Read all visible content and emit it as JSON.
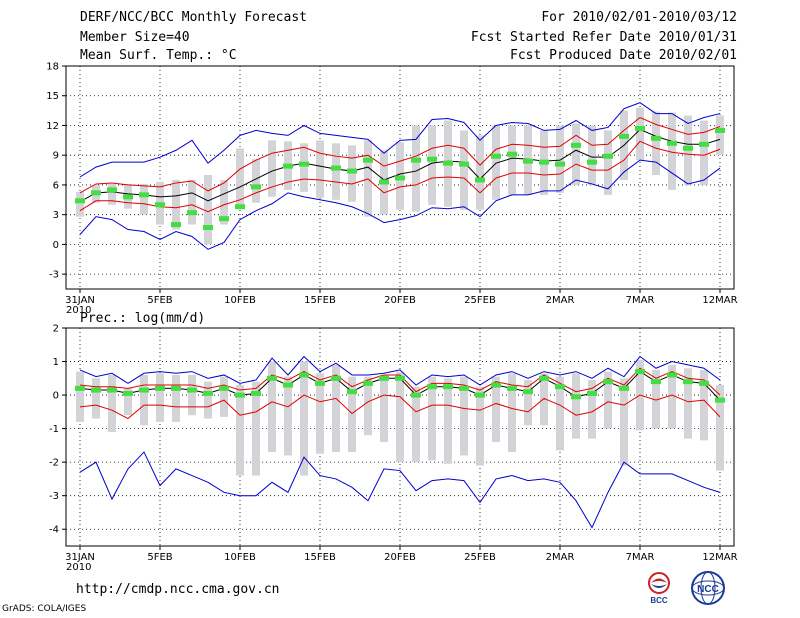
{
  "header": {
    "title": "DERF/NCC/BCC Monthly Forecast",
    "member": "Member Size=40",
    "variable": "Mean Surf. Temp.: °C",
    "period": "For 2010/02/01-2010/03/12",
    "refer": "Fcst Started Refer Date 2010/01/31",
    "produced": "Fcst Produced Date 2010/02/01"
  },
  "precip_label": "Prec.: log(mm/d)",
  "url": "http://cmdp.ncc.cma.gov.cn",
  "credit": "GrADS: COLA/IGES",
  "logos": {
    "bcc": "BCC",
    "ncc": "NCC"
  },
  "colors": {
    "ensemble_bar": "#d4d4d8",
    "mean": "#000000",
    "spread": "#e00000",
    "extreme": "#0000cc",
    "obs": "#44dd44"
  },
  "chart_data": [
    {
      "type": "line",
      "title": "Mean Surf. Temp.: °C",
      "x_tick_labels": [
        "31JAN",
        "5FEB",
        "10FEB",
        "15FEB",
        "20FEB",
        "25FEB",
        "2MAR",
        "7MAR",
        "12MAR"
      ],
      "x_tick_days": [
        0,
        5,
        10,
        15,
        20,
        25,
        30,
        35,
        40
      ],
      "year_label": "2010",
      "ylim": [
        -4.5,
        18
      ],
      "y_ticks": [
        -3,
        0,
        3,
        6,
        9,
        12,
        15,
        18
      ],
      "mean": [
        4.3,
        5.2,
        5.3,
        5.1,
        5.0,
        4.8,
        4.9,
        5.2,
        4.4,
        5.1,
        5.8,
        6.6,
        7.4,
        7.9,
        8.2,
        7.9,
        7.6,
        7.4,
        7.8,
        6.5,
        7.1,
        7.4,
        8.2,
        8.4,
        8.3,
        6.6,
        8.2,
        8.7,
        8.6,
        8.4,
        8.5,
        9.5,
        8.8,
        8.8,
        10.0,
        11.6,
        10.9,
        10.4,
        10.1,
        10.1,
        10.6
      ],
      "spread_upper": [
        5.2,
        6.1,
        6.2,
        6.0,
        5.9,
        5.8,
        6.2,
        6.4,
        5.4,
        6.2,
        7.6,
        8.5,
        9.2,
        9.5,
        9.8,
        9.2,
        8.9,
        8.7,
        9.0,
        7.9,
        8.4,
        8.9,
        9.7,
        10.0,
        9.7,
        8.0,
        9.6,
        10.1,
        10.0,
        9.8,
        9.9,
        11.0,
        10.0,
        10.1,
        11.5,
        12.8,
        12.1,
        11.6,
        11.1,
        11.3,
        11.9
      ],
      "spread_lower": [
        3.4,
        4.4,
        4.4,
        4.2,
        4.1,
        3.8,
        3.7,
        4.0,
        3.3,
        4.0,
        4.5,
        5.2,
        5.8,
        6.3,
        6.6,
        6.5,
        6.3,
        6.1,
        6.6,
        5.2,
        5.8,
        6.0,
        6.7,
        6.8,
        6.7,
        5.2,
        6.7,
        7.2,
        7.2,
        7.0,
        7.1,
        8.1,
        7.5,
        7.5,
        8.5,
        10.4,
        9.7,
        9.3,
        9.1,
        9.0,
        9.6
      ],
      "max": [
        6.8,
        7.8,
        8.3,
        8.3,
        8.3,
        8.8,
        9.5,
        10.5,
        8.2,
        9.5,
        11.0,
        11.5,
        11.2,
        11.0,
        12.0,
        11.2,
        11.0,
        10.8,
        10.6,
        9.2,
        10.5,
        10.6,
        12.6,
        12.7,
        12.3,
        10.5,
        12.0,
        12.3,
        12.2,
        11.5,
        11.6,
        12.5,
        11.5,
        11.8,
        13.7,
        14.3,
        13.2,
        13.2,
        12.2,
        12.8,
        13.2
      ],
      "min": [
        1.0,
        2.8,
        2.5,
        1.5,
        1.3,
        0.5,
        1.3,
        0.8,
        -0.5,
        0.2,
        2.5,
        3.4,
        4.1,
        5.2,
        4.8,
        4.5,
        4.2,
        3.8,
        3.1,
        2.2,
        2.5,
        2.9,
        3.7,
        3.6,
        3.8,
        2.8,
        4.4,
        5.0,
        5.0,
        5.4,
        5.4,
        6.5,
        6.1,
        5.6,
        7.3,
        8.5,
        8.3,
        7.2,
        6.1,
        6.5,
        7.7
      ],
      "bar_top": [
        5.3,
        6.0,
        6.1,
        6.1,
        6.1,
        6.3,
        6.5,
        6.5,
        7.0,
        6.5,
        9.7,
        8.6,
        10.5,
        10.4,
        10.2,
        10.5,
        10.2,
        10.0,
        10.5,
        9.5,
        10.3,
        12.0,
        12.0,
        12.5,
        11.5,
        11.0,
        12.0,
        12.0,
        12.0,
        11.5,
        12.0,
        12.2,
        12.0,
        11.5,
        13.5,
        13.8,
        13.4,
        13.3,
        13.0,
        12.5,
        13.0
      ],
      "bar_bottom": [
        2.8,
        4.2,
        4.0,
        3.6,
        3.0,
        2.0,
        1.5,
        2.0,
        0.0,
        2.0,
        3.6,
        4.2,
        4.8,
        5.5,
        5.3,
        4.7,
        4.5,
        4.3,
        2.8,
        3.0,
        3.5,
        3.3,
        4.0,
        3.8,
        3.5,
        3.5,
        4.5,
        5.0,
        5.0,
        5.0,
        5.2,
        6.0,
        6.0,
        5.0,
        6.5,
        8.5,
        7.0,
        5.5,
        6.0,
        6.0,
        9.0
      ],
      "observed": [
        4.4,
        5.2,
        5.5,
        4.8,
        5.0,
        4.0,
        2.0,
        3.2,
        1.7,
        2.6,
        3.8,
        5.8,
        null,
        7.9,
        8.1,
        null,
        7.7,
        7.4,
        8.5,
        6.3,
        6.7,
        8.5,
        8.6,
        8.2,
        8.1,
        6.5,
        8.9,
        9.1,
        8.4,
        8.3,
        8.1,
        10.0,
        8.3,
        8.9,
        10.9,
        11.7,
        10.7,
        10.2,
        9.7,
        10.1,
        11.5
      ]
    },
    {
      "type": "line",
      "title": "Prec.: log(mm/d)",
      "x_tick_labels": [
        "31JAN",
        "5FEB",
        "10FEB",
        "15FEB",
        "20FEB",
        "25FEB",
        "2MAR",
        "7MAR",
        "12MAR"
      ],
      "x_tick_days": [
        0,
        5,
        10,
        15,
        20,
        25,
        30,
        35,
        40
      ],
      "year_label": "2010",
      "ylim": [
        -4.5,
        2
      ],
      "y_ticks": [
        -4,
        -3,
        -2,
        -1,
        0,
        1,
        2
      ],
      "mean": [
        0.2,
        0.15,
        0.15,
        0.05,
        0.15,
        0.2,
        0.2,
        0.15,
        0.05,
        0.2,
        0.0,
        0.05,
        0.5,
        0.3,
        0.6,
        0.35,
        0.5,
        0.1,
        0.35,
        0.5,
        0.5,
        0.0,
        0.25,
        0.25,
        0.2,
        0.0,
        0.3,
        0.2,
        0.1,
        0.5,
        0.25,
        -0.05,
        0.05,
        0.4,
        0.2,
        0.7,
        0.4,
        0.6,
        0.4,
        0.35,
        -0.15
      ],
      "spread_upper": [
        0.3,
        0.25,
        0.25,
        0.2,
        0.3,
        0.3,
        0.3,
        0.3,
        0.2,
        0.3,
        0.15,
        0.2,
        0.6,
        0.45,
        0.7,
        0.45,
        0.6,
        0.25,
        0.45,
        0.6,
        0.6,
        0.1,
        0.35,
        0.35,
        0.3,
        0.15,
        0.4,
        0.3,
        0.25,
        0.6,
        0.35,
        0.1,
        0.2,
        0.5,
        0.3,
        0.8,
        0.5,
        0.7,
        0.5,
        0.45,
        0.0
      ],
      "spread_lower": [
        -0.35,
        -0.3,
        -0.45,
        -0.7,
        -0.3,
        -0.3,
        -0.35,
        -0.35,
        -0.35,
        -0.15,
        -0.6,
        -0.5,
        -0.2,
        -0.35,
        0.0,
        -0.2,
        -0.1,
        -0.55,
        -0.2,
        0.0,
        -0.05,
        -0.5,
        -0.3,
        -0.3,
        -0.4,
        -0.45,
        -0.25,
        -0.4,
        -0.5,
        -0.1,
        -0.3,
        -0.6,
        -0.5,
        -0.2,
        -0.3,
        0.0,
        -0.15,
        0.0,
        -0.2,
        -0.15,
        -0.65
      ],
      "max": [
        0.75,
        0.55,
        0.65,
        0.35,
        0.65,
        0.7,
        0.65,
        0.7,
        0.5,
        0.6,
        0.35,
        0.45,
        1.1,
        0.6,
        1.15,
        0.7,
        0.95,
        0.6,
        0.6,
        0.65,
        0.75,
        0.3,
        0.6,
        0.55,
        0.6,
        0.3,
        0.6,
        0.7,
        0.5,
        0.7,
        0.6,
        0.7,
        0.5,
        0.8,
        0.55,
        1.15,
        0.8,
        1.0,
        0.9,
        0.8,
        0.45
      ],
      "min": [
        -2.3,
        -2.0,
        -3.1,
        -2.2,
        -1.7,
        -2.7,
        -2.2,
        -2.4,
        -2.6,
        -2.9,
        -3.0,
        -3.0,
        -2.6,
        -2.9,
        -1.85,
        -2.4,
        -2.5,
        -2.75,
        -3.15,
        -2.2,
        -2.25,
        -2.85,
        -2.55,
        -2.5,
        -2.55,
        -3.2,
        -2.5,
        -2.4,
        -2.55,
        -2.5,
        -2.6,
        -3.15,
        -3.95,
        -2.9,
        -2.0,
        -2.35,
        -2.35,
        -2.35,
        -2.55,
        -2.75,
        -2.9
      ],
      "bar_top": [
        0.7,
        0.5,
        0.6,
        0.2,
        0.6,
        0.65,
        0.6,
        0.6,
        0.4,
        0.55,
        0.3,
        0.4,
        1.0,
        0.55,
        1.0,
        0.65,
        0.9,
        0.55,
        0.55,
        0.6,
        0.7,
        0.25,
        0.55,
        0.5,
        0.55,
        0.25,
        0.55,
        0.65,
        0.45,
        0.65,
        0.55,
        0.65,
        0.45,
        0.7,
        0.5,
        1.05,
        0.75,
        0.9,
        0.8,
        0.75,
        0.3
      ],
      "bar_bottom": [
        -0.8,
        -0.7,
        -1.1,
        -0.6,
        -0.9,
        -0.8,
        -0.8,
        -0.6,
        -0.7,
        -0.65,
        -2.4,
        -2.4,
        -1.7,
        -1.8,
        -2.4,
        -1.75,
        -1.7,
        -1.7,
        -1.2,
        -1.4,
        -2.0,
        -2.0,
        -1.95,
        -2.05,
        -1.8,
        -2.1,
        -1.4,
        -1.7,
        -0.9,
        -0.9,
        -1.65,
        -1.3,
        -1.3,
        -1.0,
        -2.1,
        -1.05,
        -1.0,
        -1.0,
        -1.3,
        -1.35,
        -2.25
      ]
    }
  ]
}
